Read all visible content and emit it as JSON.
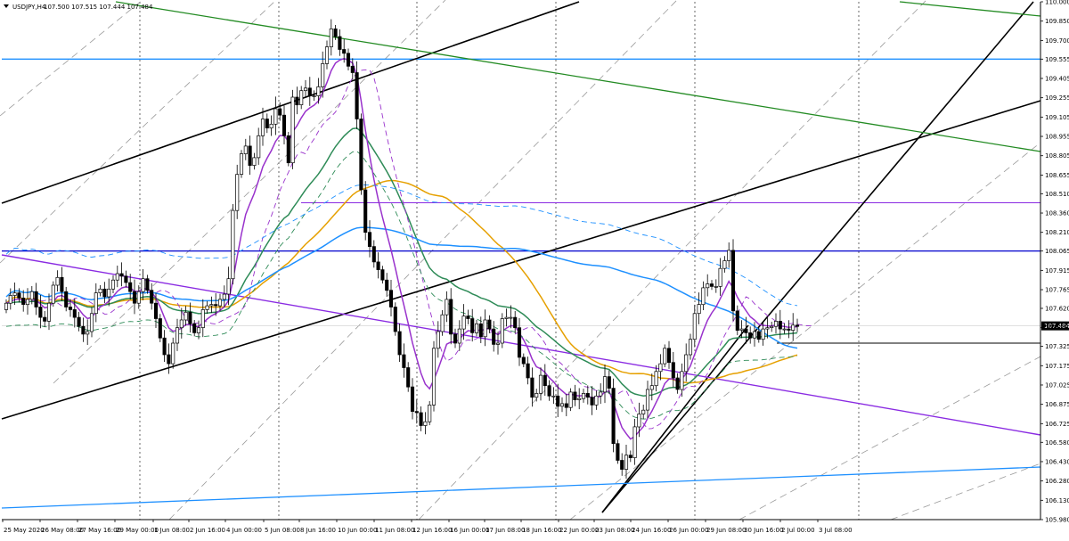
{
  "header": {
    "title": "USDJPY,H4",
    "ohlc": "107.500 107.515 107.444 107.484",
    "menu_icon": "triangle-down-icon"
  },
  "chart_data": {
    "type": "candlestick",
    "symbol": "USDJPY",
    "timeframe": "H4",
    "ylim": [
      105.98,
      110.0
    ],
    "y_ticks": [
      "110.000",
      "109.850",
      "109.700",
      "109.555",
      "109.405",
      "109.255",
      "109.105",
      "108.955",
      "108.805",
      "108.655",
      "108.510",
      "108.360",
      "108.210",
      "108.065",
      "107.915",
      "107.765",
      "107.620",
      "107.470",
      "107.325",
      "107.175",
      "107.025",
      "106.875",
      "106.725",
      "106.580",
      "106.430",
      "106.280",
      "106.130",
      "105.980"
    ],
    "x_ticks": [
      "25 May 2020",
      "26 May 08:00",
      "27 May 16:00",
      "29 May 00:00",
      "1 Jun 08:00",
      "2 Jun 16:00",
      "4 Jun 00:00",
      "5 Jun 08:00",
      "8 Jun 16:00",
      "10 Jun 00:00",
      "11 Jun 08:00",
      "12 Jun 16:00",
      "16 Jun 00:00",
      "17 Jun 08:00",
      "18 Jun 16:00",
      "22 Jun 00:00",
      "23 Jun 08:00",
      "24 Jun 16:00",
      "26 Jun 00:00",
      "29 Jun 08:00",
      "30 Jun 16:00",
      "2 Jul 00:00",
      "3 Jul 08:00"
    ],
    "current_price": "107.484",
    "grid": "vertical dashed",
    "closes": [
      107.66,
      107.72,
      107.74,
      107.7,
      107.65,
      107.69,
      107.75,
      107.63,
      107.55,
      107.52,
      107.66,
      107.8,
      107.86,
      107.75,
      107.63,
      107.61,
      107.55,
      107.48,
      107.42,
      107.44,
      107.58,
      107.74,
      107.77,
      107.71,
      107.77,
      107.84,
      107.89,
      107.87,
      107.82,
      107.75,
      107.66,
      107.75,
      107.85,
      107.76,
      107.66,
      107.54,
      107.39,
      107.26,
      107.19,
      107.35,
      107.47,
      107.53,
      107.59,
      107.5,
      107.43,
      107.47,
      107.61,
      107.64,
      107.65,
      107.64,
      107.69,
      107.73,
      107.85,
      108.38,
      108.66,
      108.82,
      108.88,
      108.73,
      108.79,
      108.96,
      109.09,
      109.02,
      109.05,
      109.17,
      109.12,
      108.96,
      108.75,
      109.26,
      109.2,
      109.31,
      109.33,
      109.27,
      109.27,
      109.34,
      109.52,
      109.65,
      109.79,
      109.73,
      109.63,
      109.6,
      109.5,
      109.45,
      109.09,
      108.54,
      108.21,
      108.1,
      107.98,
      107.92,
      107.84,
      107.76,
      107.63,
      107.44,
      107.26,
      107.16,
      107.01,
      106.82,
      106.81,
      106.71,
      106.74,
      106.87,
      107.31,
      107.44,
      107.57,
      107.69,
      107.42,
      107.35,
      107.46,
      107.56,
      107.54,
      107.43,
      107.5,
      107.4,
      107.53,
      107.46,
      107.34,
      107.35,
      107.54,
      107.55,
      107.55,
      107.47,
      107.24,
      107.19,
      107.08,
      106.93,
      106.96,
      107.1,
      107.02,
      106.94,
      106.94,
      106.86,
      106.88,
      106.85,
      106.97,
      106.91,
      106.92,
      106.96,
      106.93,
      106.87,
      106.94,
      106.97,
      107.09,
      107.0,
      106.57,
      106.44,
      106.37,
      106.48,
      106.46,
      106.7,
      106.8,
      106.83,
      106.99,
      107.02,
      107.13,
      107.19,
      107.31,
      107.2,
      107.08,
      106.99,
      107.13,
      107.26,
      107.38,
      107.58,
      107.65,
      107.78,
      107.81,
      107.79,
      107.79,
      107.93,
      107.99,
      108.07,
      107.6,
      107.45,
      107.46,
      107.43,
      107.39,
      107.44,
      107.38,
      107.46,
      107.47,
      107.48,
      107.52,
      107.46,
      107.46,
      107.45,
      107.49,
      107.48
    ],
    "series": [
      {
        "name": "",
        "type": "moving-average-solid",
        "color": "#e6a000"
      },
      {
        "name": "",
        "type": "moving-average-solid",
        "color": "#2e8b57"
      },
      {
        "name": "",
        "type": "moving-average-solid",
        "color": "#1e90ff"
      },
      {
        "name": "",
        "type": "moving-average-solid",
        "color": "#9932cc"
      },
      {
        "name": "",
        "type": "moving-average-dashed",
        "color": "#9932cc"
      },
      {
        "name": "",
        "type": "moving-average-dashed",
        "color": "#2e8b57"
      },
      {
        "name": "",
        "type": "moving-average-dashed",
        "color": "#1e90ff"
      }
    ],
    "horizontal_levels": [
      {
        "price": 109.555,
        "color": "#1e90ff"
      },
      {
        "price": 108.065,
        "color": "#0000cd"
      },
      {
        "price": 108.44,
        "color": "#8a2be2"
      },
      {
        "price": 107.35,
        "color": "#000000"
      },
      {
        "price": 107.484,
        "color": "#c0c0c0"
      }
    ],
    "colors": {
      "bull": "#ffffff",
      "bear": "#000000",
      "wick": "#000000",
      "grid": "#000000"
    }
  }
}
